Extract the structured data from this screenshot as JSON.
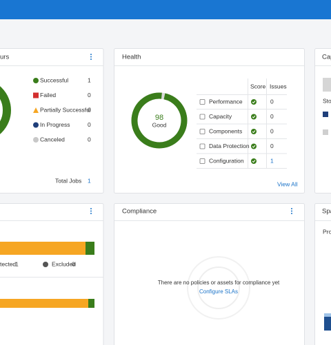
{
  "jobs_panel": {
    "title": "urs",
    "legend": [
      {
        "label": "Successful",
        "value": 1
      },
      {
        "label": "Failed",
        "value": 0
      },
      {
        "label": "Partially Successful",
        "value": 0
      },
      {
        "label": "In Progress",
        "value": 0
      },
      {
        "label": "Canceled",
        "value": 0
      }
    ],
    "total_label": "Total Jobs",
    "total": 1
  },
  "health_panel": {
    "title": "Health",
    "score": 98,
    "status": "Good",
    "columns": [
      "Score",
      "Issues"
    ],
    "rows": [
      {
        "label": "Performance",
        "issues": 0
      },
      {
        "label": "Capacity",
        "issues": 0
      },
      {
        "label": "Components",
        "issues": 0
      },
      {
        "label": "Data Protection",
        "issues": 0
      },
      {
        "label": "Configuration",
        "issues": 1
      }
    ],
    "link": "View All"
  },
  "capacity_panel": {
    "title": "Cap",
    "legend_title": "Sto"
  },
  "protection_panel": {
    "stats": [
      {
        "label": "tected",
        "value": 1
      },
      {
        "label": "Excluded",
        "value": 0
      }
    ]
  },
  "compliance_panel": {
    "title": "Compliance",
    "message": "There are no policies or assets for compliance yet",
    "link": "Configure SLAs"
  },
  "space_panel": {
    "title": "Spa",
    "subtitle": "Pro"
  }
}
